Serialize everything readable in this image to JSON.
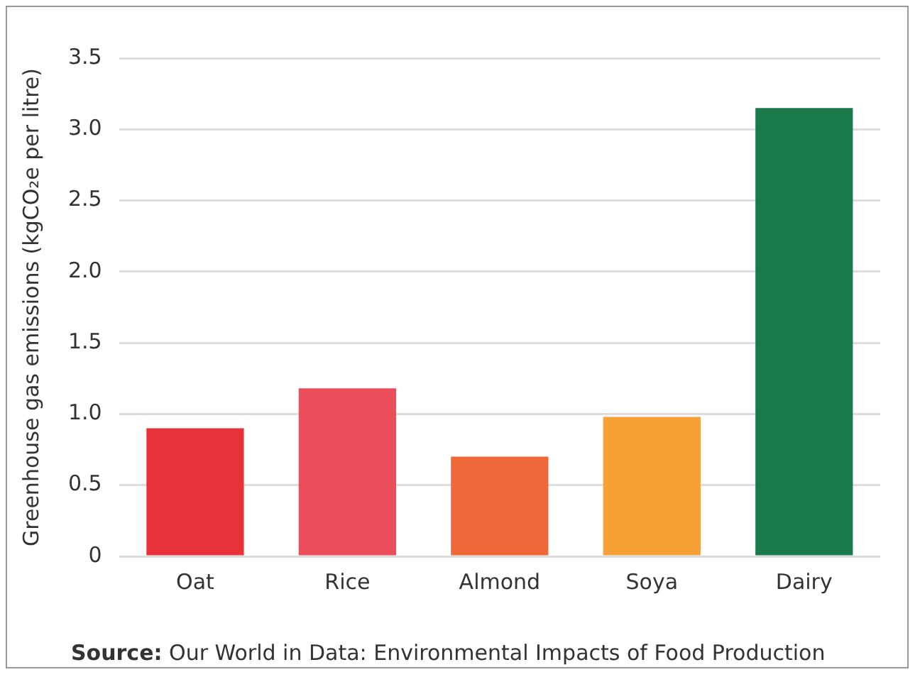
{
  "chart_data": {
    "type": "bar",
    "ylabel": "Greenhouse gas emissions (kgCO₂e per litre)",
    "categories": [
      "Oat",
      "Rice",
      "Almond",
      "Soya",
      "Dairy"
    ],
    "values": [
      0.9,
      1.18,
      0.7,
      0.98,
      3.15
    ],
    "colors": [
      "#e8323a",
      "#ec4d5a",
      "#f0673a",
      "#f7a035",
      "#1a7a4a"
    ],
    "ylim": [
      0,
      3.5
    ],
    "yticks": [
      0,
      0.5,
      {
        "value": 1,
        "label": "1.0"
      },
      1.5,
      {
        "value": 2,
        "label": "2.0"
      },
      2.5,
      {
        "value": 3,
        "label": "3.0"
      },
      3.5
    ],
    "grid": "y",
    "legend": false,
    "annotations": [
      "Source: Our World in Data: Environmental Impacts of Food Production"
    ]
  }
}
